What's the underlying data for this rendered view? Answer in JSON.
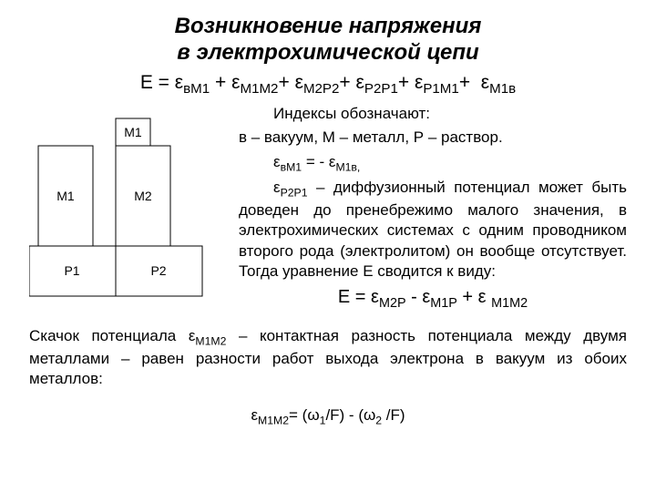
{
  "title_line1": "Возникновение напряжения",
  "title_line2": "в электрохимической цепи",
  "main_equation": "E = ε<sub>вМ1</sub> + ε<sub>М1М2</sub>+ ε<sub>М2Р2</sub>+ ε<sub>Р2Р1</sub>+ ε<sub>Р1М1</sub>+&nbsp;&nbsp;ε<sub>М1в</sub>",
  "diagram": {
    "labels": {
      "M1_left": "М1",
      "M1_top": "М1",
      "M2": "М2",
      "P1": "Р1",
      "P2": "Р2"
    },
    "stroke": "#000000",
    "fill": "#ffffff",
    "font_size": 14
  },
  "body": {
    "line_indexes": "Индексы обозначают:",
    "line_defs": "в – вакуум, М – металл, Р – раствор.",
    "line_eq1": "ε<sub>вМ1</sub> = - ε<sub>М1в,</sub>",
    "paragraph": "ε<sub>Р2Р1</sub> – диффузионный потенциал может быть доведен до пренебрежимо малого значения, в электрохимических системах с одним проводником второго рода (электролитом) он вообще отсутствует. Тогда уравнение Е сводится к виду:",
    "short_eq": "E = ε<sub>М2Р</sub> - ε<sub>М1Р</sub> + ε <sub>М1М2</sub>"
  },
  "bottom": {
    "paragraph": "Скачок потенциала ε<sub>М1М2</sub> – контактная разность потенциала между двумя металлами – равен разности работ выхода электрона в вакуум из обоих металлов:",
    "eq_work": "ε<sub>М1М2</sub>= (ω<sub>1</sub>/F) - (ω<sub>2</sub> /F)"
  }
}
